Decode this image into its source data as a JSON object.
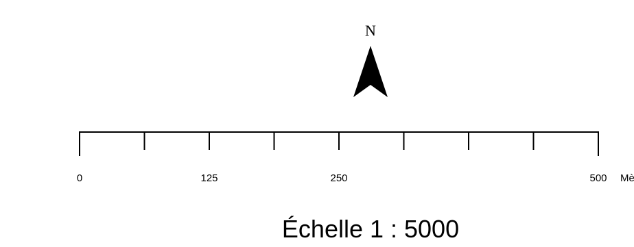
{
  "north_arrow": {
    "label": "N",
    "icon": "north-arrow-icon"
  },
  "scale_bar": {
    "min_value": 0,
    "max_value": 500,
    "divisions": 8,
    "tick_labels": [
      {
        "value": 0,
        "text": "0"
      },
      {
        "value": 125,
        "text": "125"
      },
      {
        "value": 250,
        "text": "250"
      },
      {
        "value": 500,
        "text": "500"
      }
    ],
    "unit_label": "Mètres"
  },
  "scale_caption": "Échelle 1 : 5000",
  "colors": {
    "ink": "#000000",
    "background": "#ffffff"
  }
}
